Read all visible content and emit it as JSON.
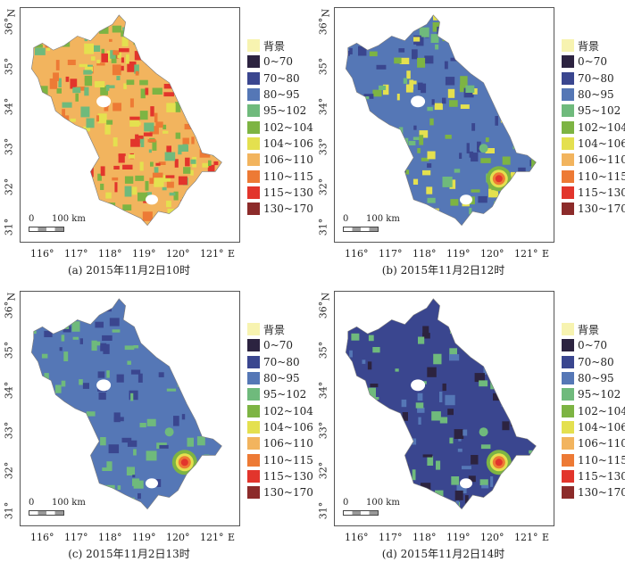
{
  "legend": {
    "items": [
      {
        "label": "背景",
        "color": "#f7f3b0"
      },
      {
        "label": "0~70",
        "color": "#2c2340"
      },
      {
        "label": "70~80",
        "color": "#3a468f"
      },
      {
        "label": "80~95",
        "color": "#5577b6"
      },
      {
        "label": "95~102",
        "color": "#6fba7c"
      },
      {
        "label": "102~104",
        "color": "#7db443"
      },
      {
        "label": "104~106",
        "color": "#e4e04f"
      },
      {
        "label": "106~110",
        "color": "#f2b45e"
      },
      {
        "label": "110~115",
        "color": "#ed7a35"
      },
      {
        "label": "115~130",
        "color": "#e2352c"
      },
      {
        "label": "130~170",
        "color": "#8c2b2a"
      }
    ]
  },
  "axes": {
    "x_ticks": [
      "116°",
      "117°",
      "118°",
      "119°",
      "120°",
      "121°"
    ],
    "x_suffix": "E",
    "y_ticks": [
      "31°",
      "32°",
      "33°",
      "34°",
      "35°",
      "36°"
    ],
    "y_suffix": "N"
  },
  "scalebar": {
    "zero": "0",
    "distance": "100 km"
  },
  "panels": [
    {
      "caption": "(a) 2015年11月2日10时",
      "base": "#f2b45e",
      "mix": [
        "#6fba7c",
        "#e2352c",
        "#e4e04f",
        "#7db443",
        "#ed7a35"
      ]
    },
    {
      "caption": "(b) 2015年11月2日12时",
      "base": "#5577b6",
      "mix": [
        "#6fba7c",
        "#7db443",
        "#3a468f",
        "#e4e04f"
      ]
    },
    {
      "caption": "(c) 2015年11月2日13时",
      "base": "#5577b6",
      "mix": [
        "#3a468f",
        "#6fba7c"
      ]
    },
    {
      "caption": "(d) 2015年11月2日14时",
      "base": "#3a468f",
      "mix": [
        "#2c2340",
        "#5577b6",
        "#6fba7c"
      ]
    }
  ]
}
